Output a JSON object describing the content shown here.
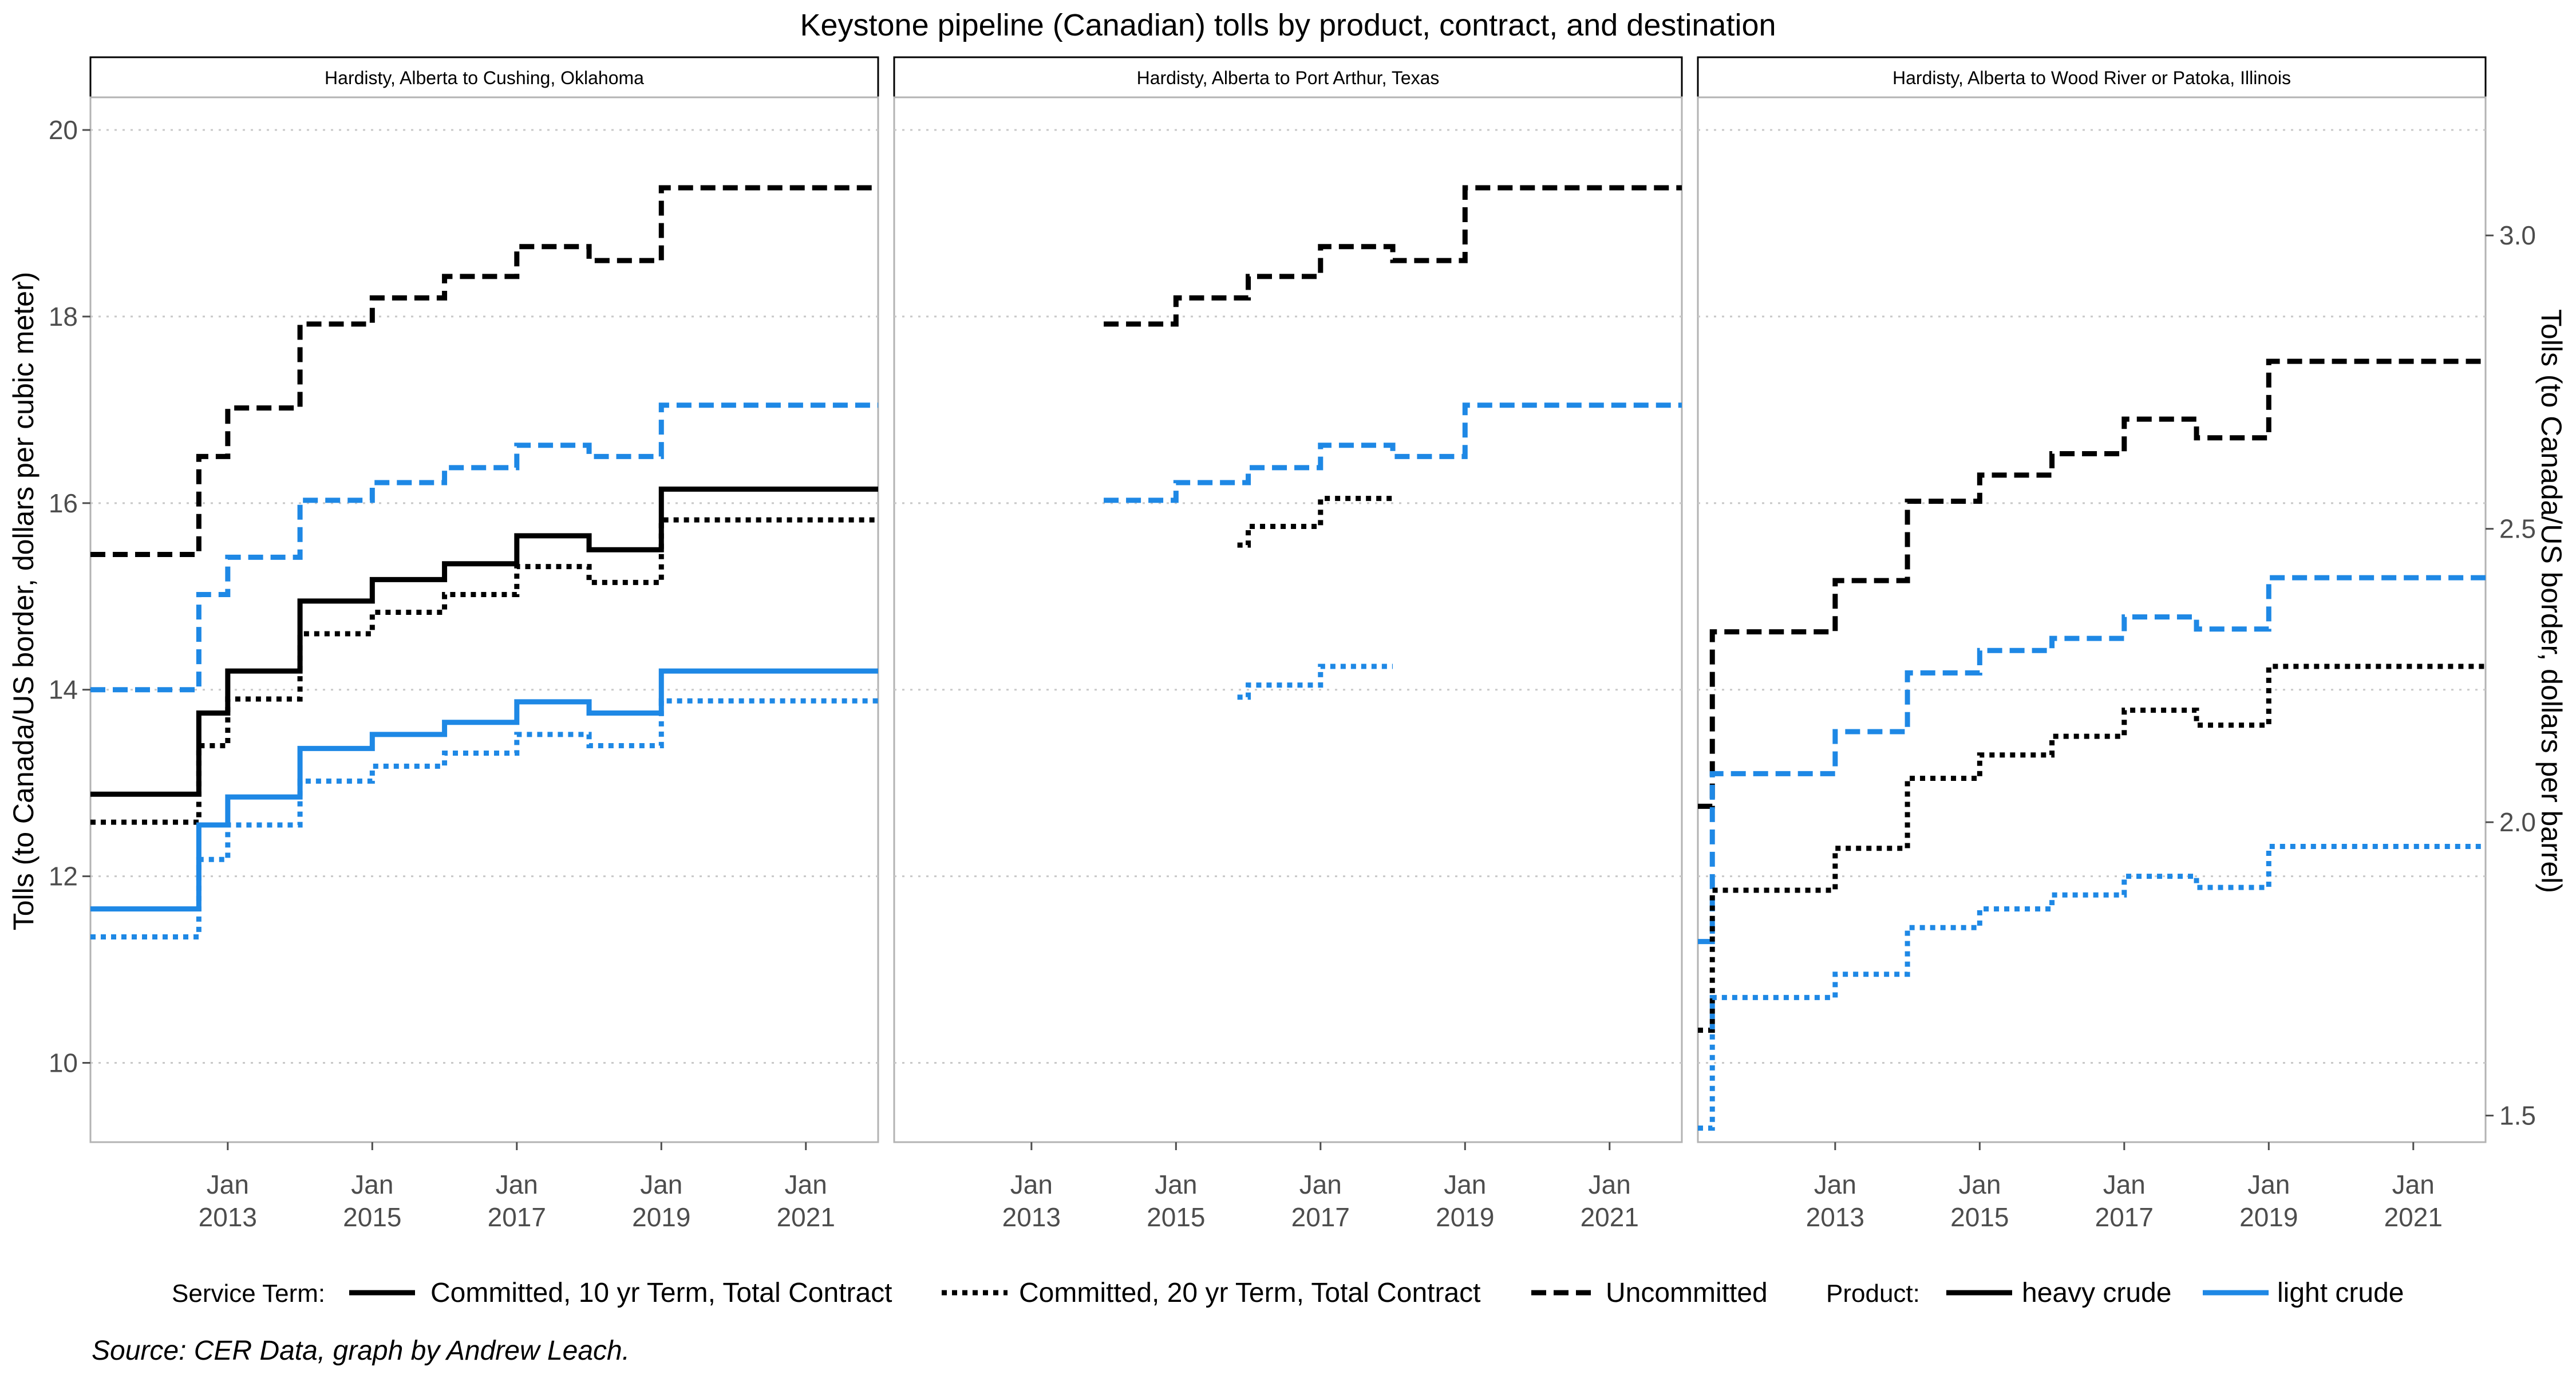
{
  "chart_data": {
    "type": "line",
    "step": "hv",
    "title": "Keystone pipeline (Canadian) tolls by product, contract, and destination",
    "ylabel": "Tolls (to Canada/US border, dollars per cubic meter)",
    "y2label": "Tolls (to Canada/US border, dollars per barrel)",
    "caption": "Source: CER Data, graph by Andrew Leach.",
    "xlim": [
      2011.1,
      2022.0
    ],
    "ylim": [
      9.15,
      20.35
    ],
    "x_ticks": [
      {
        "value": 2013,
        "line1": "Jan",
        "line2": "2013"
      },
      {
        "value": 2015,
        "line1": "Jan",
        "line2": "2015"
      },
      {
        "value": 2017,
        "line1": "Jan",
        "line2": "2017"
      },
      {
        "value": 2019,
        "line1": "Jan",
        "line2": "2019"
      },
      {
        "value": 2021,
        "line1": "Jan",
        "line2": "2021"
      }
    ],
    "y_ticks": [
      10,
      12,
      14,
      16,
      18,
      20
    ],
    "y2_ticks": [
      1.5,
      2.0,
      2.5,
      3.0
    ],
    "y2_factor": 0.158987,
    "grid": "horizontal-major-dotted",
    "legend": {
      "position": "bottom",
      "service_title": "Service Term:",
      "service_items": [
        {
          "label": "Committed, 10 yr Term, Total Contract",
          "dash": "solid"
        },
        {
          "label": "Committed, 20 yr Term, Total Contract",
          "dash": "dotted"
        },
        {
          "label": "Uncommitted",
          "dash": "dashed"
        }
      ],
      "product_title": "Product:",
      "product_items": [
        {
          "label": "heavy crude",
          "color": "#000000"
        },
        {
          "label": "light crude",
          "color": "#1e88e5"
        }
      ]
    },
    "colors": {
      "heavy crude": "#000000",
      "light crude": "#1e88e5",
      "grid": "#c8c8c8",
      "panel_border": "#b3b3b3"
    },
    "facets": [
      {
        "label": "Hardisty, Alberta to Cushing, Oklahoma",
        "series": [
          {
            "product": "heavy crude",
            "term": "uncommitted",
            "x": [
              2011.1,
              2012.6,
              2013.0,
              2014.0,
              2015.0,
              2016.0,
              2017.0,
              2018.0,
              2019.0,
              2022.0
            ],
            "y": [
              15.45,
              16.5,
              17.02,
              17.92,
              18.2,
              18.43,
              18.75,
              18.6,
              19.38,
              19.38
            ]
          },
          {
            "product": "light crude",
            "term": "uncommitted",
            "x": [
              2011.1,
              2012.6,
              2013.0,
              2014.0,
              2015.0,
              2016.0,
              2017.0,
              2018.0,
              2019.0,
              2022.0
            ],
            "y": [
              14.0,
              15.02,
              15.42,
              16.03,
              16.22,
              16.38,
              16.62,
              16.5,
              17.05,
              17.05
            ]
          },
          {
            "product": "heavy crude",
            "term": "10 yr",
            "x": [
              2011.1,
              2012.6,
              2013.0,
              2014.0,
              2015.0,
              2016.0,
              2017.0,
              2018.0,
              2019.0,
              2022.0
            ],
            "y": [
              12.88,
              13.75,
              14.2,
              14.95,
              15.18,
              15.35,
              15.65,
              15.5,
              16.15,
              16.15
            ]
          },
          {
            "product": "heavy crude",
            "term": "20 yr",
            "x": [
              2011.1,
              2012.6,
              2013.0,
              2014.0,
              2015.0,
              2016.0,
              2017.0,
              2018.0,
              2019.0,
              2022.0
            ],
            "y": [
              12.58,
              13.4,
              13.9,
              14.6,
              14.83,
              15.02,
              15.32,
              15.15,
              15.82,
              15.82
            ]
          },
          {
            "product": "light crude",
            "term": "10 yr",
            "x": [
              2011.1,
              2012.6,
              2013.0,
              2014.0,
              2015.0,
              2016.0,
              2017.0,
              2018.0,
              2019.0,
              2022.0
            ],
            "y": [
              11.65,
              12.55,
              12.85,
              13.37,
              13.52,
              13.65,
              13.87,
              13.75,
              14.2,
              14.2
            ]
          },
          {
            "product": "light crude",
            "term": "20 yr",
            "x": [
              2011.1,
              2012.6,
              2013.0,
              2014.0,
              2015.0,
              2016.0,
              2017.0,
              2018.0,
              2019.0,
              2022.0
            ],
            "y": [
              11.35,
              12.18,
              12.55,
              13.02,
              13.18,
              13.32,
              13.52,
              13.4,
              13.88,
              13.88
            ]
          }
        ]
      },
      {
        "label": "Hardisty, Alberta to Port Arthur, Texas",
        "series": [
          {
            "product": "heavy crude",
            "term": "uncommitted",
            "x": [
              2014.0,
              2015.0,
              2016.0,
              2017.0,
              2018.0,
              2019.0,
              2022.0
            ],
            "y": [
              17.92,
              18.2,
              18.43,
              18.75,
              18.6,
              19.38,
              19.38
            ]
          },
          {
            "product": "light crude",
            "term": "uncommitted",
            "x": [
              2014.0,
              2015.0,
              2016.0,
              2017.0,
              2018.0,
              2019.0,
              2022.0
            ],
            "y": [
              16.03,
              16.22,
              16.38,
              16.62,
              16.5,
              17.05,
              17.05
            ]
          },
          {
            "product": "heavy crude",
            "term": "20 yr",
            "x": [
              2015.85,
              2016.0,
              2017.0,
              2018.0
            ],
            "y": [
              15.55,
              15.75,
              16.05,
              16.05
            ]
          },
          {
            "product": "light crude",
            "term": "20 yr",
            "x": [
              2015.85,
              2016.0,
              2017.0,
              2018.0
            ],
            "y": [
              13.92,
              14.05,
              14.25,
              14.25
            ]
          }
        ]
      },
      {
        "label": "Hardisty, Alberta to Wood River or Patoka, Illinois",
        "series": [
          {
            "product": "heavy crude",
            "term": "uncommitted",
            "x": [
              2011.1,
              2011.3,
              2012.0,
              2013.0,
              2014.0,
              2015.0,
              2016.0,
              2017.0,
              2018.0,
              2019.0,
              2022.0
            ],
            "y": [
              12.75,
              14.62,
              14.62,
              15.17,
              16.02,
              16.3,
              16.53,
              16.9,
              16.7,
              17.52,
              17.52
            ]
          },
          {
            "product": "light crude",
            "term": "uncommitted",
            "x": [
              2011.1,
              2011.3,
              2012.0,
              2013.0,
              2014.0,
              2015.0,
              2016.0,
              2017.0,
              2018.0,
              2019.0,
              2022.0
            ],
            "y": [
              11.3,
              13.1,
              13.1,
              13.55,
              14.18,
              14.42,
              14.55,
              14.78,
              14.65,
              15.2,
              15.2
            ]
          },
          {
            "product": "heavy crude",
            "term": "20 yr",
            "x": [
              2011.1,
              2011.3,
              2012.0,
              2013.0,
              2014.0,
              2015.0,
              2016.0,
              2017.0,
              2018.0,
              2019.0,
              2022.0
            ],
            "y": [
              10.35,
              11.85,
              11.85,
              12.3,
              13.05,
              13.3,
              13.5,
              13.78,
              13.62,
              14.25,
              14.25
            ]
          },
          {
            "product": "light crude",
            "term": "20 yr",
            "x": [
              2011.1,
              2011.3,
              2012.0,
              2013.0,
              2014.0,
              2015.0,
              2016.0,
              2017.0,
              2018.0,
              2019.0,
              2022.0
            ],
            "y": [
              9.3,
              10.7,
              10.7,
              10.95,
              11.45,
              11.65,
              11.8,
              12.0,
              11.88,
              12.32,
              12.32
            ]
          }
        ]
      }
    ]
  }
}
